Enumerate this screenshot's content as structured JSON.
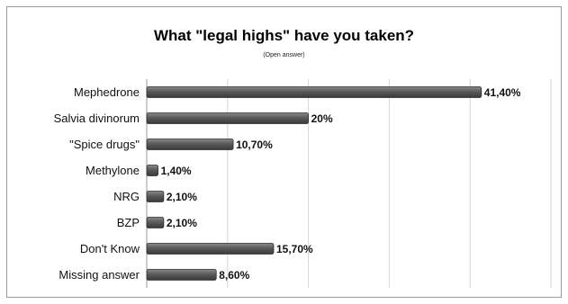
{
  "chart_data": {
    "type": "bar",
    "orientation": "horizontal",
    "title": "What \"legal highs\" have you taken?",
    "subtitle": "(Open answer)",
    "categories": [
      "Mephedrone",
      "Salvia divinorum",
      "\"Spice drugs\"",
      "Methylone",
      "NRG",
      "BZP",
      "Don't Know",
      "Missing answer"
    ],
    "values": [
      41.4,
      20,
      10.7,
      1.4,
      2.1,
      2.1,
      15.7,
      8.6
    ],
    "value_labels": [
      "41,40%",
      "20%",
      "10,70%",
      "1,40%",
      "2,10%",
      "2,10%",
      "15,70%",
      "8,60%"
    ],
    "xlim": [
      0,
      50
    ],
    "grid": true,
    "bar_color": "#5a5a5a"
  }
}
